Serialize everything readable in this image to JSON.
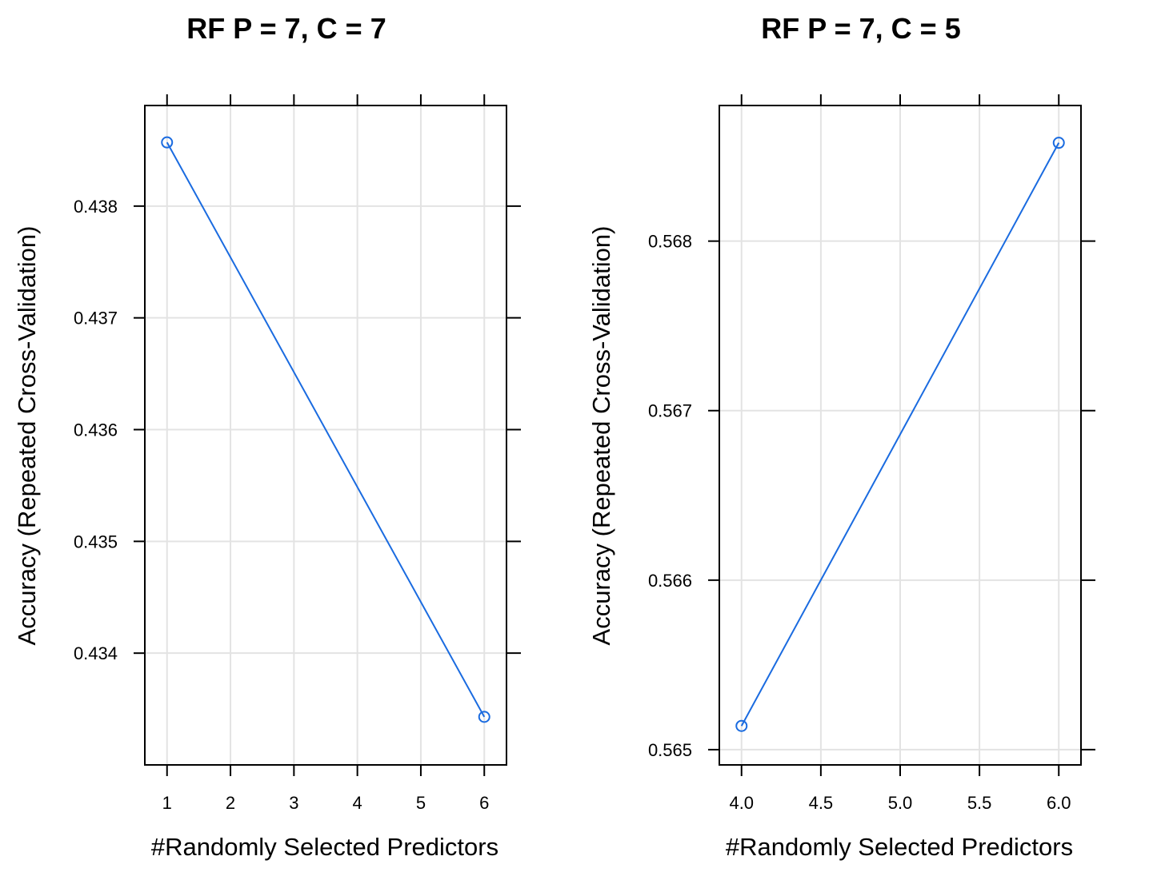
{
  "chart_data": [
    {
      "type": "line",
      "title": "RF P = 7, C = 7",
      "xlabel": "#Randomly Selected Predictors",
      "ylabel": "Accuracy (Repeated Cross-Validation)",
      "xlim": [
        0.65,
        6.35
      ],
      "ylim": [
        0.433,
        0.4389
      ],
      "xticks": [
        1,
        2,
        3,
        4,
        5,
        6
      ],
      "xtick_labels": [
        "1",
        "2",
        "3",
        "4",
        "5",
        "6"
      ],
      "yticks": [
        0.434,
        0.435,
        0.436,
        0.437,
        0.438
      ],
      "ytick_labels": [
        "0.434",
        "0.435",
        "0.436",
        "0.437",
        "0.438"
      ],
      "grid": true,
      "series": [
        {
          "x": [
            1,
            6
          ],
          "y": [
            0.43857,
            0.43343
          ],
          "color": "#1a6be0"
        }
      ]
    },
    {
      "type": "line",
      "title": "RF P = 7, C = 5",
      "xlabel": "#Randomly Selected Predictors",
      "ylabel": "Accuracy (Repeated Cross-Validation)",
      "xlim": [
        3.86,
        6.14
      ],
      "ylim": [
        0.56491,
        0.5688
      ],
      "xticks": [
        4.0,
        4.5,
        5.0,
        5.5,
        6.0
      ],
      "xtick_labels": [
        "4.0",
        "4.5",
        "5.0",
        "5.5",
        "6.0"
      ],
      "yticks": [
        0.565,
        0.566,
        0.567,
        0.568
      ],
      "ytick_labels": [
        "0.565",
        "0.566",
        "0.567",
        "0.568"
      ],
      "grid": true,
      "series": [
        {
          "x": [
            4,
            6
          ],
          "y": [
            0.56514,
            0.56858
          ],
          "color": "#1a6be0"
        }
      ]
    }
  ]
}
